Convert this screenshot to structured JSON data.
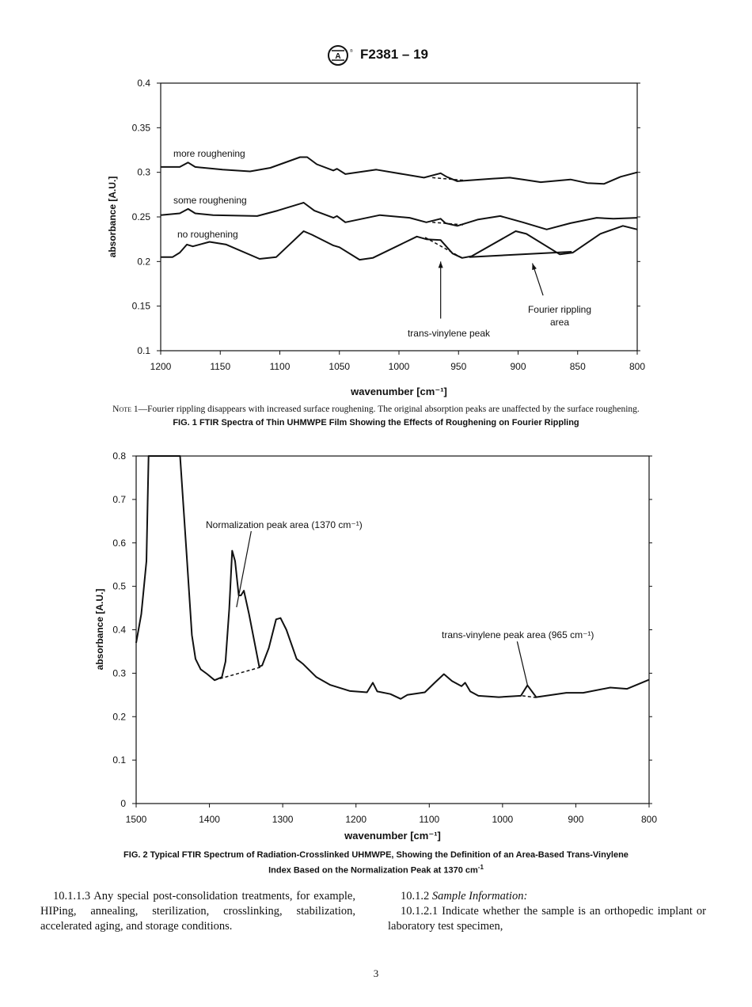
{
  "header": {
    "logo": "ASTM",
    "designation": "F2381 – 19"
  },
  "figure1": {
    "note_label": "Note 1",
    "note_text": "—Fourier rippling disappears with increased surface roughening. The original absorption peaks are unaffected by the surface roughening.",
    "caption": "FIG. 1 FTIR Spectra of Thin UHMWPE Film Showing the Effects of Roughening on Fourier Rippling"
  },
  "figure2": {
    "caption_line1": "FIG. 2 Typical FTIR Spectrum of Radiation-Crosslinked UHMWPE, Showing the Definition of an Area-Based Trans-Vinylene",
    "caption_line2": "Index Based on the Normalization Peak at 1370 cm",
    "caption_sup": "-1"
  },
  "body": {
    "left_para": "10.1.1.3 Any special post-consolidation treatments, for example, HIPing, annealing, sterilization, crosslinking, stabilization, accelerated aging, and storage conditions.",
    "right_heading_num": "10.1.2",
    "right_heading": "Sample Information:",
    "right_para": "10.1.2.1 Indicate whether the sample is an orthopedic implant or laboratory test specimen,"
  },
  "page_number": "3",
  "chart_data": [
    {
      "type": "line",
      "xlabel": "wavenumber [cm⁻¹]",
      "ylabel": "absorbance [A.U.]",
      "xlim": [
        1200,
        800
      ],
      "ylim": [
        0.1,
        0.4
      ],
      "x_reversed": true,
      "grid": false,
      "xticks": [
        "1200",
        "1150",
        "1100",
        "1050",
        "1000",
        "950",
        "900",
        "850",
        "800"
      ],
      "yticks": [
        "0.1",
        "0.15",
        "0.2",
        "0.25",
        "0.3",
        "0.35",
        "0.4"
      ],
      "series": [
        {
          "name": "more roughening",
          "x": [
            1200,
            1184,
            1177,
            1171,
            1148,
            1125,
            1108,
            1083,
            1077,
            1069,
            1055,
            1052,
            1045,
            1019,
            979,
            965,
            960,
            951,
            921,
            907,
            896,
            881,
            856,
            842,
            828,
            814,
            800
          ],
          "y": [
            0.306,
            0.306,
            0.311,
            0.306,
            0.303,
            0.301,
            0.305,
            0.317,
            0.317,
            0.309,
            0.302,
            0.304,
            0.298,
            0.303,
            0.294,
            0.299,
            0.295,
            0.29,
            0.293,
            0.294,
            0.292,
            0.289,
            0.292,
            0.288,
            0.287,
            0.295,
            0.3
          ]
        },
        {
          "name": "some roughening",
          "x": [
            1200,
            1184,
            1177,
            1171,
            1156,
            1119,
            1102,
            1080,
            1071,
            1055,
            1052,
            1045,
            1016,
            991,
            977,
            965,
            961,
            951,
            934,
            915,
            896,
            876,
            856,
            834,
            820,
            800
          ],
          "y": [
            0.252,
            0.254,
            0.259,
            0.254,
            0.252,
            0.251,
            0.257,
            0.266,
            0.257,
            0.249,
            0.251,
            0.244,
            0.252,
            0.249,
            0.244,
            0.248,
            0.243,
            0.24,
            0.247,
            0.251,
            0.244,
            0.236,
            0.243,
            0.249,
            0.248,
            0.249
          ]
        },
        {
          "name": "no roughening",
          "x": [
            1200,
            1190,
            1184,
            1178,
            1173,
            1159,
            1145,
            1117,
            1103,
            1080,
            1073,
            1055,
            1050,
            1033,
            1022,
            985,
            977,
            965,
            955,
            947,
            939,
            902,
            893,
            865,
            854,
            831,
            812,
            800
          ],
          "y": [
            0.205,
            0.205,
            0.21,
            0.219,
            0.217,
            0.222,
            0.219,
            0.203,
            0.205,
            0.234,
            0.23,
            0.218,
            0.216,
            0.202,
            0.204,
            0.228,
            0.225,
            0.224,
            0.209,
            0.204,
            0.206,
            0.234,
            0.231,
            0.208,
            0.21,
            0.231,
            0.24,
            0.236
          ]
        }
      ],
      "baselines": [
        {
          "style": "dashed",
          "x": [
            972,
            945
          ],
          "y": [
            0.294,
            0.291
          ]
        },
        {
          "style": "dashed",
          "x": [
            972,
            945
          ],
          "y": [
            0.244,
            0.241
          ]
        },
        {
          "style": "dashed",
          "x": [
            978,
            947
          ],
          "y": [
            0.227,
            0.204
          ]
        },
        {
          "style": "solid",
          "x": [
            941,
            855
          ],
          "y": [
            0.205,
            0.211
          ]
        }
      ],
      "annotations": [
        {
          "text": "trans-vinylene peak",
          "arrow_from": [
            965,
            0.136
          ],
          "arrow_to": [
            965,
            0.2
          ]
        },
        {
          "text": "Fourier rippling",
          "text2": "area",
          "arrow_from": [
            879,
            0.162
          ],
          "arrow_to": [
            888,
            0.198
          ]
        }
      ]
    },
    {
      "type": "line",
      "xlabel": "wavenumber [cm⁻¹]",
      "ylabel": "absorbance [A.U.]",
      "xlim": [
        1500,
        800
      ],
      "ylim": [
        0,
        0.8
      ],
      "x_reversed": true,
      "grid": false,
      "xticks": [
        "1500",
        "1400",
        "1300",
        "1200",
        "1100",
        "1000",
        "900",
        "800"
      ],
      "yticks": [
        "0",
        "0.1",
        "0.2",
        "0.3",
        "0.4",
        "0.5",
        "0.6",
        "0.7",
        "0.8"
      ],
      "series": [
        {
          "x": [
            1500,
            1493,
            1486,
            1483,
            1440,
            1431,
            1424,
            1419,
            1412,
            1403,
            1393,
            1383,
            1378,
            1373,
            1369,
            1365,
            1360,
            1357,
            1353,
            1346,
            1332,
            1328,
            1319,
            1309,
            1303,
            1295,
            1281,
            1272,
            1254,
            1235,
            1208,
            1185,
            1177,
            1171,
            1153,
            1139,
            1130,
            1106,
            1092,
            1080,
            1069,
            1056,
            1051,
            1044,
            1033,
            1005,
            975,
            966,
            954,
            913,
            890,
            853,
            830,
            800
          ],
          "y": [
            0.37,
            0.436,
            0.558,
            0.8,
            0.8,
            0.57,
            0.388,
            0.333,
            0.309,
            0.298,
            0.284,
            0.291,
            0.327,
            0.448,
            0.582,
            0.558,
            0.479,
            0.479,
            0.49,
            0.436,
            0.315,
            0.318,
            0.358,
            0.424,
            0.427,
            0.4,
            0.333,
            0.321,
            0.291,
            0.273,
            0.259,
            0.256,
            0.278,
            0.258,
            0.252,
            0.241,
            0.25,
            0.256,
            0.279,
            0.298,
            0.282,
            0.27,
            0.278,
            0.258,
            0.248,
            0.245,
            0.248,
            0.272,
            0.245,
            0.255,
            0.255,
            0.267,
            0.264,
            0.285
          ]
        }
      ],
      "baselines": [
        {
          "style": "dashed",
          "x": [
            1393,
            1330
          ],
          "y": [
            0.284,
            0.314
          ]
        },
        {
          "style": "dashed",
          "x": [
            973,
            954
          ],
          "y": [
            0.248,
            0.244
          ]
        }
      ],
      "annotations": [
        {
          "text": "Normalization peak area (1370 cm⁻¹)",
          "line_from": [
            1343,
            0.627
          ],
          "line_to": [
            1363,
            0.452
          ]
        },
        {
          "text": "trans-vinylene peak area (965 cm⁻¹)",
          "line_from": [
            980,
            0.373
          ],
          "line_to": [
            966,
            0.273
          ]
        }
      ]
    }
  ]
}
